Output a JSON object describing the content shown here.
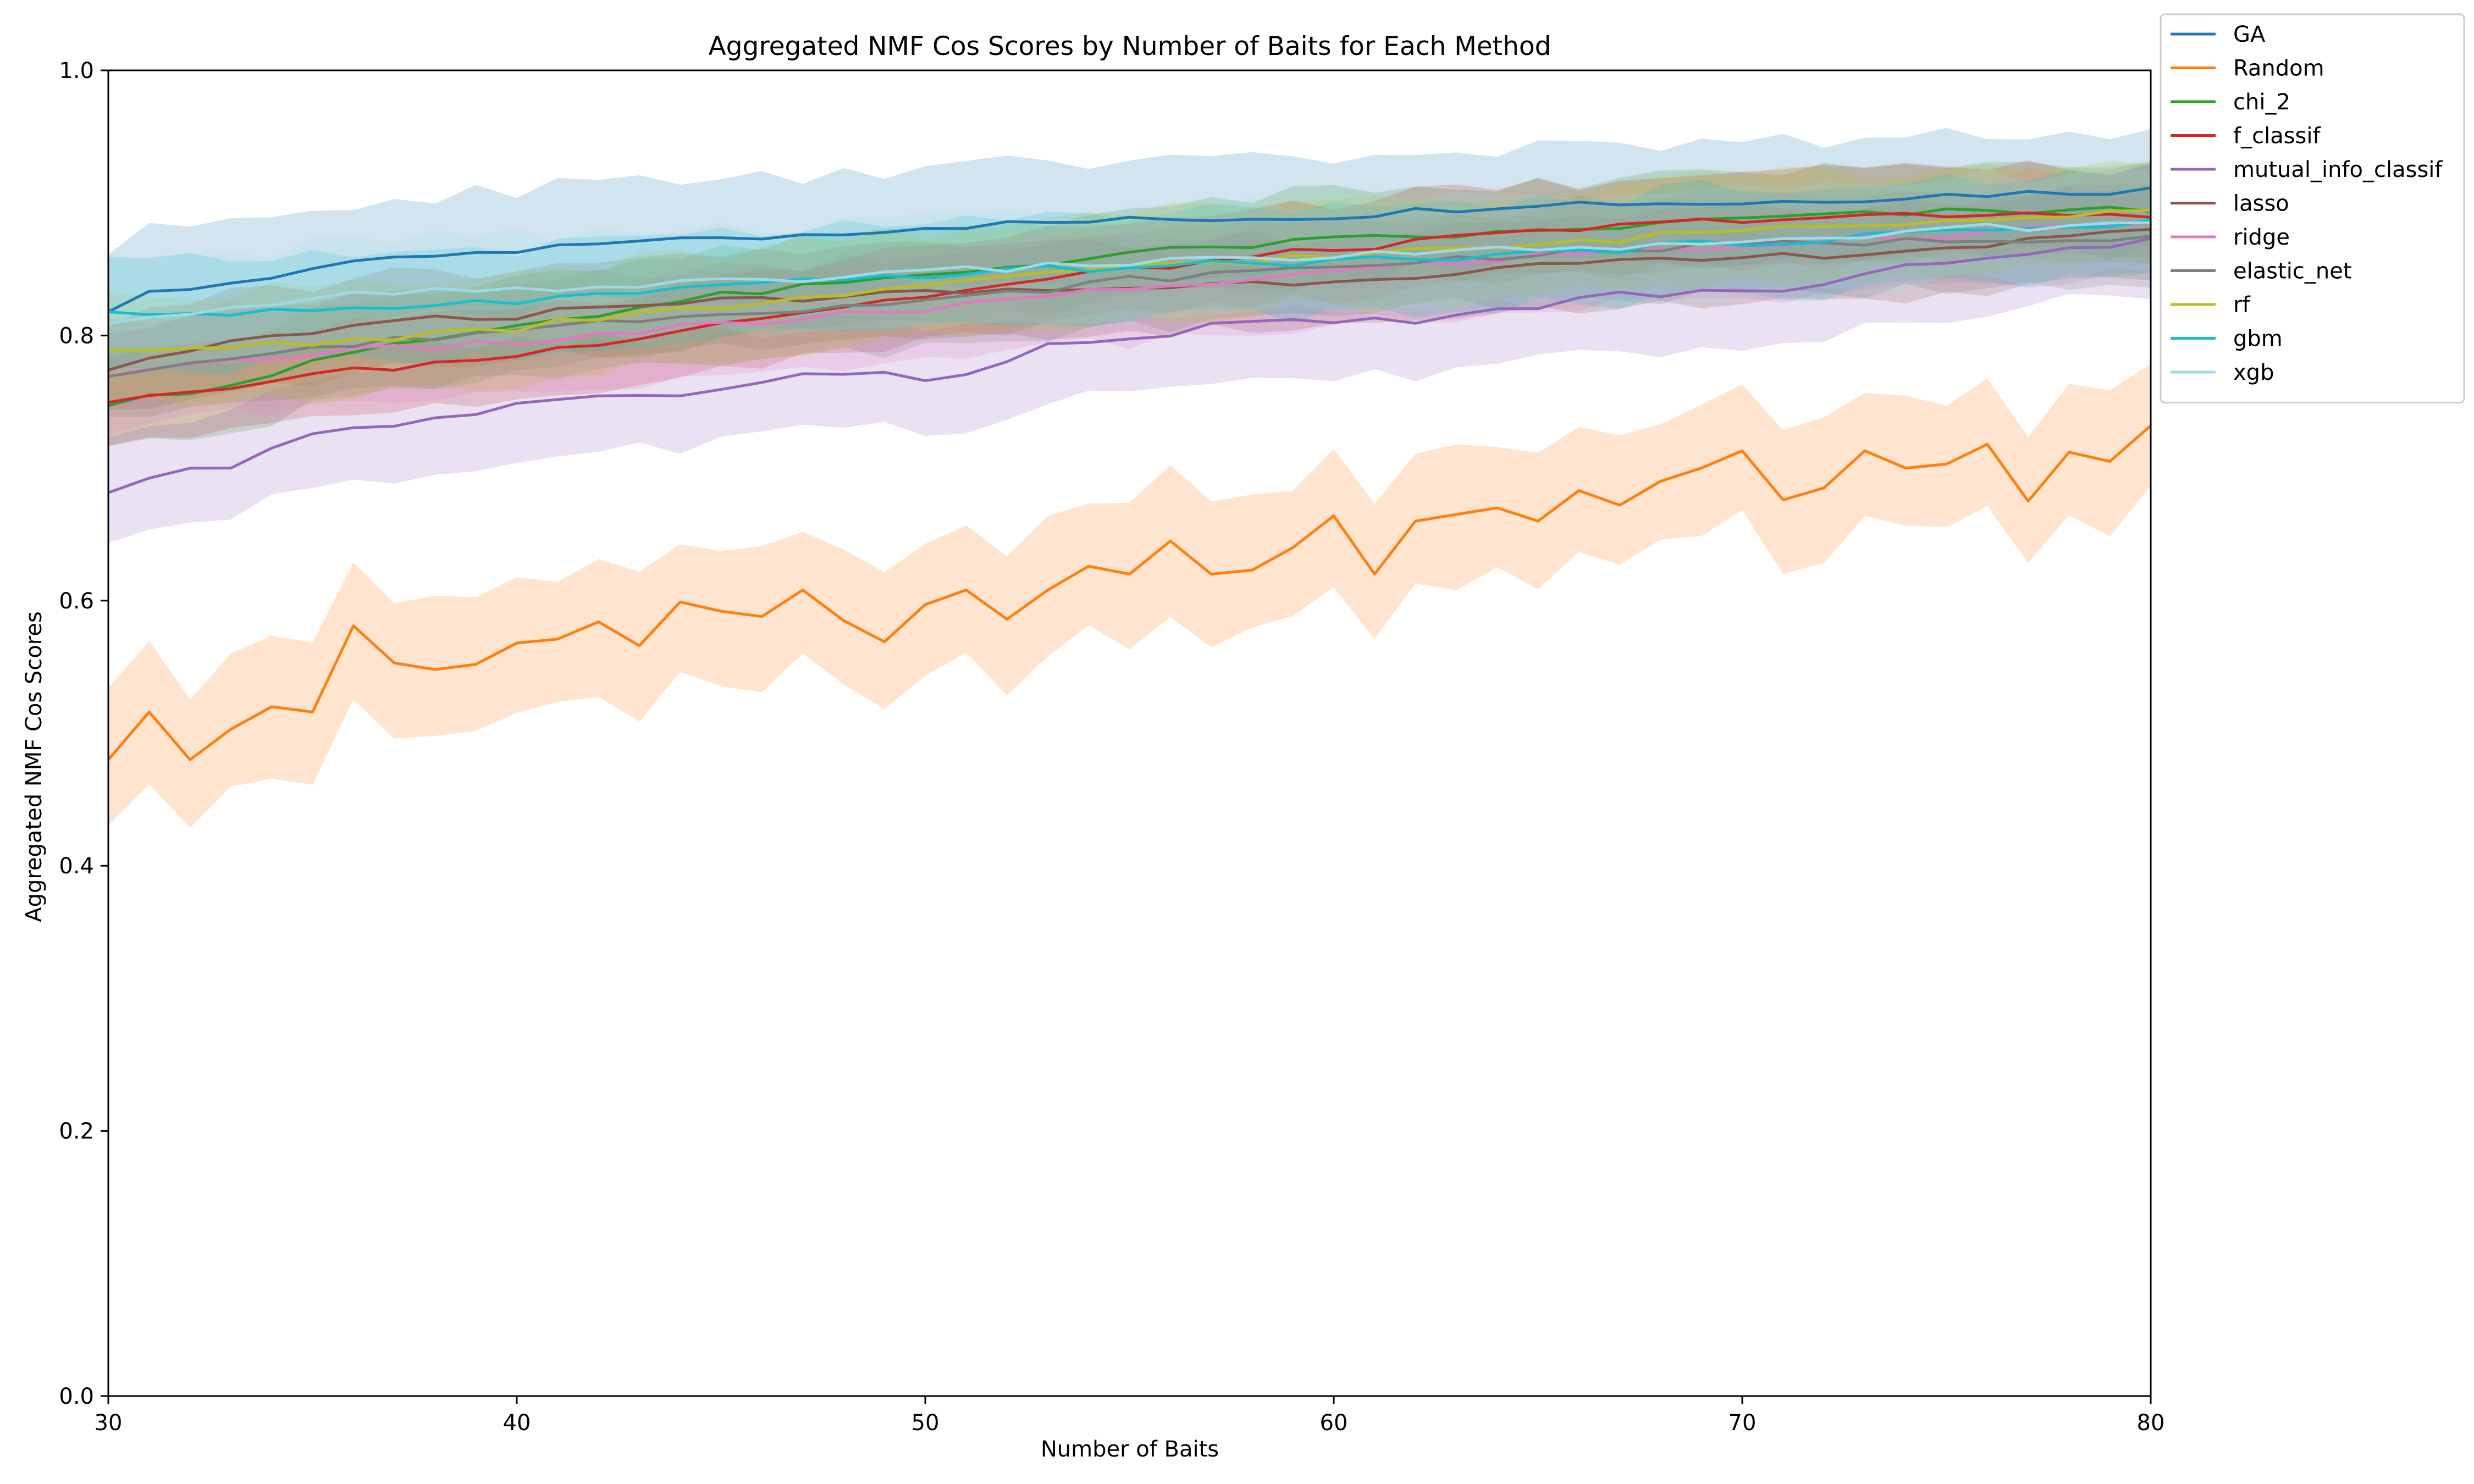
{
  "chart_data": {
    "type": "line",
    "title": "Aggregated NMF Cos Scores by Number of Baits for Each Method",
    "xlabel": "Number of Baits",
    "ylabel": "Aggregated NMF Cos Scores",
    "xlim": [
      30,
      80
    ],
    "ylim": [
      0.0,
      1.0
    ],
    "xticks": [
      30,
      40,
      50,
      60,
      70,
      80
    ],
    "yticks": [
      0.0,
      0.2,
      0.4,
      0.6,
      0.8,
      1.0
    ],
    "xtick_labels": [
      "30",
      "40",
      "50",
      "60",
      "70",
      "80"
    ],
    "ytick_labels": [
      "0.0",
      "0.2",
      "0.4",
      "0.6",
      "0.8",
      "1.0"
    ],
    "grid": false,
    "legend_position": "outside-top-right",
    "band": "shaded confidence interval around each line",
    "series": [
      {
        "name": "GA",
        "color": "#1f77b4",
        "anchors": [
          [
            30,
            0.815
          ],
          [
            31,
            0.832
          ],
          [
            33,
            0.84
          ],
          [
            35,
            0.85
          ],
          [
            38,
            0.86
          ],
          [
            40,
            0.862
          ],
          [
            43,
            0.873
          ],
          [
            45,
            0.872
          ],
          [
            50,
            0.882
          ],
          [
            55,
            0.887
          ],
          [
            60,
            0.89
          ],
          [
            65,
            0.9
          ],
          [
            70,
            0.9
          ],
          [
            75,
            0.906
          ],
          [
            80,
            0.91
          ]
        ],
        "ci": 0.045
      },
      {
        "name": "Random",
        "color": "#ff7f0e",
        "points": [
          [
            30,
            0.48
          ],
          [
            31,
            0.516
          ],
          [
            32,
            0.48
          ],
          [
            33,
            0.503
          ],
          [
            34,
            0.52
          ],
          [
            35,
            0.516
          ],
          [
            36,
            0.581
          ],
          [
            37,
            0.553
          ],
          [
            38,
            0.548
          ],
          [
            39,
            0.552
          ],
          [
            40,
            0.568
          ],
          [
            41,
            0.571
          ],
          [
            42,
            0.584
          ],
          [
            43,
            0.566
          ],
          [
            44,
            0.599
          ],
          [
            45,
            0.592
          ],
          [
            46,
            0.588
          ],
          [
            47,
            0.608
          ],
          [
            48,
            0.585
          ],
          [
            49,
            0.569
          ],
          [
            50,
            0.597
          ],
          [
            51,
            0.608
          ],
          [
            52,
            0.586
          ],
          [
            53,
            0.608
          ],
          [
            54,
            0.626
          ],
          [
            55,
            0.62
          ],
          [
            56,
            0.645
          ],
          [
            57,
            0.62
          ],
          [
            58,
            0.623
          ],
          [
            59,
            0.64
          ],
          [
            60,
            0.664
          ],
          [
            61,
            0.62
          ],
          [
            62,
            0.66
          ],
          [
            63,
            0.665
          ],
          [
            64,
            0.67
          ],
          [
            65,
            0.66
          ],
          [
            66,
            0.683
          ],
          [
            67,
            0.672
          ],
          [
            68,
            0.69
          ],
          [
            69,
            0.7
          ],
          [
            70,
            0.713
          ],
          [
            71,
            0.676
          ],
          [
            72,
            0.685
          ],
          [
            73,
            0.713
          ],
          [
            74,
            0.7
          ],
          [
            75,
            0.703
          ],
          [
            76,
            0.718
          ],
          [
            77,
            0.675
          ],
          [
            78,
            0.712
          ],
          [
            79,
            0.705
          ],
          [
            80,
            0.732
          ]
        ],
        "ci": 0.05
      },
      {
        "name": "chi_2",
        "color": "#2ca02c",
        "anchors": [
          [
            30,
            0.75
          ],
          [
            33,
            0.763
          ],
          [
            35,
            0.78
          ],
          [
            37,
            0.792
          ],
          [
            40,
            0.808
          ],
          [
            45,
            0.83
          ],
          [
            50,
            0.845
          ],
          [
            55,
            0.862
          ],
          [
            60,
            0.872
          ],
          [
            65,
            0.878
          ],
          [
            70,
            0.888
          ],
          [
            75,
            0.893
          ],
          [
            80,
            0.895
          ]
        ],
        "ci": 0.035
      },
      {
        "name": "f_classif",
        "color": "#d62728",
        "anchors": [
          [
            30,
            0.748
          ],
          [
            33,
            0.762
          ],
          [
            35,
            0.77
          ],
          [
            37,
            0.776
          ],
          [
            40,
            0.785
          ],
          [
            42,
            0.795
          ],
          [
            45,
            0.81
          ],
          [
            50,
            0.83
          ],
          [
            55,
            0.85
          ],
          [
            60,
            0.865
          ],
          [
            65,
            0.878
          ],
          [
            70,
            0.888
          ],
          [
            75,
            0.89
          ],
          [
            80,
            0.892
          ]
        ],
        "ci": 0.035
      },
      {
        "name": "mutual_info_classif",
        "color": "#9467bd",
        "anchors": [
          [
            30,
            0.683
          ],
          [
            31,
            0.693
          ],
          [
            32,
            0.697
          ],
          [
            33,
            0.703
          ],
          [
            34,
            0.713
          ],
          [
            35,
            0.725
          ],
          [
            37,
            0.733
          ],
          [
            39,
            0.742
          ],
          [
            41,
            0.752
          ],
          [
            43,
            0.756
          ],
          [
            45,
            0.757
          ],
          [
            47,
            0.77
          ],
          [
            49,
            0.774
          ],
          [
            50,
            0.768
          ],
          [
            51,
            0.769
          ],
          [
            52,
            0.783
          ],
          [
            53,
            0.795
          ],
          [
            55,
            0.797
          ],
          [
            57,
            0.808
          ],
          [
            60,
            0.81
          ],
          [
            62,
            0.812
          ],
          [
            64,
            0.818
          ],
          [
            65,
            0.82
          ],
          [
            66,
            0.83
          ],
          [
            68,
            0.831
          ],
          [
            70,
            0.833
          ],
          [
            72,
            0.838
          ],
          [
            74,
            0.852
          ],
          [
            76,
            0.86
          ],
          [
            78,
            0.866
          ],
          [
            80,
            0.871
          ]
        ],
        "ci": 0.04
      },
      {
        "name": "lasso",
        "color": "#8c564b",
        "anchors": [
          [
            30,
            0.773
          ],
          [
            33,
            0.795
          ],
          [
            35,
            0.803
          ],
          [
            38,
            0.812
          ],
          [
            40,
            0.815
          ],
          [
            43,
            0.825
          ],
          [
            45,
            0.826
          ],
          [
            50,
            0.832
          ],
          [
            55,
            0.836
          ],
          [
            60,
            0.842
          ],
          [
            63,
            0.848
          ],
          [
            65,
            0.852
          ],
          [
            70,
            0.858
          ],
          [
            75,
            0.866
          ],
          [
            80,
            0.878
          ]
        ],
        "ci": 0.035
      },
      {
        "name": "ridge",
        "color": "#e377c2",
        "anchors": [
          [
            30,
            0.77
          ],
          [
            33,
            0.782
          ],
          [
            35,
            0.786
          ],
          [
            40,
            0.795
          ],
          [
            45,
            0.808
          ],
          [
            50,
            0.82
          ],
          [
            55,
            0.835
          ],
          [
            60,
            0.848
          ],
          [
            65,
            0.86
          ],
          [
            70,
            0.868
          ],
          [
            75,
            0.875
          ],
          [
            80,
            0.888
          ]
        ],
        "ci": 0.04
      },
      {
        "name": "elastic_net",
        "color": "#7f7f7f",
        "anchors": [
          [
            30,
            0.772
          ],
          [
            35,
            0.79
          ],
          [
            40,
            0.805
          ],
          [
            45,
            0.818
          ],
          [
            50,
            0.825
          ],
          [
            55,
            0.842
          ],
          [
            60,
            0.852
          ],
          [
            65,
            0.862
          ],
          [
            70,
            0.868
          ],
          [
            75,
            0.872
          ],
          [
            80,
            0.875
          ]
        ],
        "ci": 0.035
      },
      {
        "name": "rf",
        "color": "#bcbd22",
        "anchors": [
          [
            30,
            0.788
          ],
          [
            33,
            0.792
          ],
          [
            35,
            0.795
          ],
          [
            40,
            0.806
          ],
          [
            45,
            0.822
          ],
          [
            50,
            0.836
          ],
          [
            55,
            0.853
          ],
          [
            60,
            0.86
          ],
          [
            65,
            0.868
          ],
          [
            70,
            0.88
          ],
          [
            75,
            0.888
          ],
          [
            80,
            0.895
          ]
        ],
        "ci": 0.04
      },
      {
        "name": "gbm",
        "color": "#17becf",
        "anchors": [
          [
            30,
            0.818
          ],
          [
            32,
            0.815
          ],
          [
            35,
            0.818
          ],
          [
            40,
            0.826
          ],
          [
            45,
            0.836
          ],
          [
            50,
            0.846
          ],
          [
            55,
            0.852
          ],
          [
            60,
            0.856
          ],
          [
            65,
            0.862
          ],
          [
            70,
            0.87
          ],
          [
            75,
            0.878
          ],
          [
            80,
            0.886
          ]
        ],
        "ci": 0.04
      },
      {
        "name": "xgb",
        "color": "#9edae5",
        "anchors": [
          [
            30,
            0.808
          ],
          [
            32,
            0.815
          ],
          [
            34,
            0.824
          ],
          [
            36,
            0.83
          ],
          [
            40,
            0.835
          ],
          [
            45,
            0.84
          ],
          [
            50,
            0.848
          ],
          [
            55,
            0.855
          ],
          [
            60,
            0.86
          ],
          [
            65,
            0.866
          ],
          [
            70,
            0.868
          ],
          [
            75,
            0.88
          ],
          [
            80,
            0.885
          ]
        ],
        "ci": 0.04
      }
    ]
  }
}
